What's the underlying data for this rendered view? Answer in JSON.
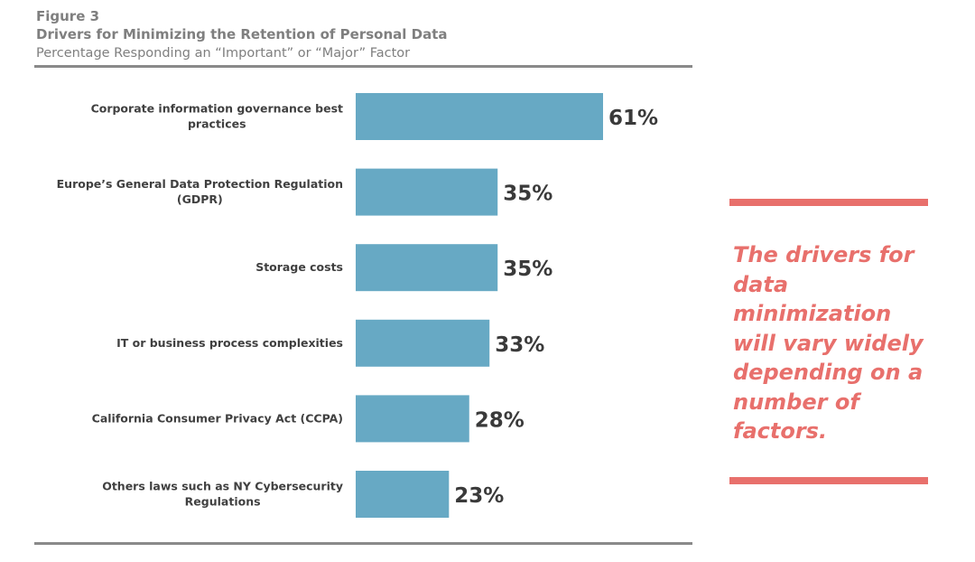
{
  "header": {
    "figure": "Figure 3",
    "title": "Drivers for Minimizing the Retention of Personal Data",
    "subtitle": "Percentage Responding an “Important” or “Major” Factor"
  },
  "chart_data": {
    "type": "bar",
    "orientation": "horizontal",
    "title": "Drivers for Minimizing the Retention of Personal Data",
    "subtitle": "Percentage Responding an “Important” or “Major” Factor",
    "categories": [
      [
        "Corporate information governance best",
        "practices"
      ],
      [
        "Europe’s General Data Protection Regulation",
        "(GDPR)"
      ],
      [
        "Storage costs"
      ],
      [
        "IT or business process complexities"
      ],
      [
        "California Consumer Privacy Act (CCPA)"
      ],
      [
        "Others laws such as NY Cybersecurity",
        "Regulations"
      ]
    ],
    "values": [
      61,
      35,
      35,
      33,
      28,
      23
    ],
    "data_labels": [
      "61%",
      "35%",
      "35%",
      "33%",
      "28%",
      "23%"
    ],
    "unit": "%",
    "grid": false,
    "bar_color": "#67a9c4"
  },
  "callout": {
    "text": "The drivers for data minimization will vary widely depending on a number of factors.",
    "color": "#e8706c"
  }
}
